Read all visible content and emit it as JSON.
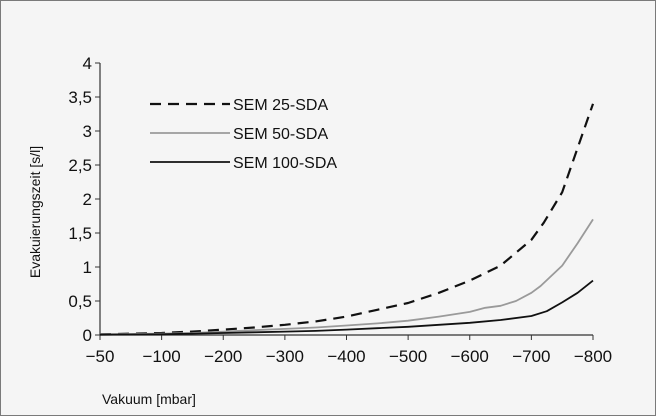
{
  "chart_data": {
    "type": "line",
    "xlabel": "Vakuum [mbar]",
    "ylabel": "Evakuierungszeit [s/l]",
    "xlim": [
      -50,
      -800
    ],
    "ylim": [
      0,
      4
    ],
    "x_ticks": [
      -50,
      -100,
      -200,
      -300,
      -400,
      -500,
      -600,
      -700,
      -800
    ],
    "x_tick_labels": [
      "−50",
      "−100",
      "−200",
      "−300",
      "−400",
      "−500",
      "−600",
      "−700",
      "−800"
    ],
    "y_ticks": [
      0,
      0.5,
      1,
      1.5,
      2,
      2.5,
      3,
      3.5,
      4
    ],
    "y_tick_labels": [
      "0",
      "0,5",
      "1",
      "1,5",
      "2",
      "2,5",
      "3",
      "3,5",
      "4"
    ],
    "grid": false,
    "legend_position": "top-left",
    "series": [
      {
        "name": "SEM 25-SDA",
        "color": "#111111",
        "dash": "dashed",
        "x": [
          -50,
          -100,
          -150,
          -200,
          -250,
          -300,
          -350,
          -400,
          -450,
          -500,
          -550,
          -600,
          -650,
          -700,
          -720,
          -750,
          -775,
          -800
        ],
        "y": [
          0.01,
          0.03,
          0.05,
          0.08,
          0.11,
          0.15,
          0.2,
          0.27,
          0.37,
          0.47,
          0.62,
          0.8,
          1.02,
          1.4,
          1.65,
          2.1,
          2.75,
          3.4
        ]
      },
      {
        "name": "SEM 50-SDA",
        "color": "#9a9a9a",
        "dash": "solid",
        "x": [
          -50,
          -100,
          -150,
          -200,
          -250,
          -300,
          -350,
          -400,
          -450,
          -500,
          -550,
          -600,
          -625,
          -650,
          -675,
          -700,
          -715,
          -750,
          -775,
          -800
        ],
        "y": [
          0.01,
          0.02,
          0.03,
          0.05,
          0.07,
          0.09,
          0.11,
          0.14,
          0.17,
          0.21,
          0.27,
          0.34,
          0.4,
          0.43,
          0.5,
          0.62,
          0.72,
          1.02,
          1.35,
          1.7
        ]
      },
      {
        "name": "SEM 100-SDA",
        "color": "#111111",
        "dash": "solid",
        "x": [
          -50,
          -100,
          -150,
          -200,
          -250,
          -300,
          -350,
          -400,
          -450,
          -500,
          -550,
          -600,
          -650,
          -700,
          -725,
          -750,
          -775,
          -800
        ],
        "y": [
          0.005,
          0.01,
          0.02,
          0.03,
          0.04,
          0.05,
          0.06,
          0.08,
          0.1,
          0.12,
          0.15,
          0.18,
          0.22,
          0.28,
          0.35,
          0.48,
          0.62,
          0.8
        ]
      }
    ]
  }
}
